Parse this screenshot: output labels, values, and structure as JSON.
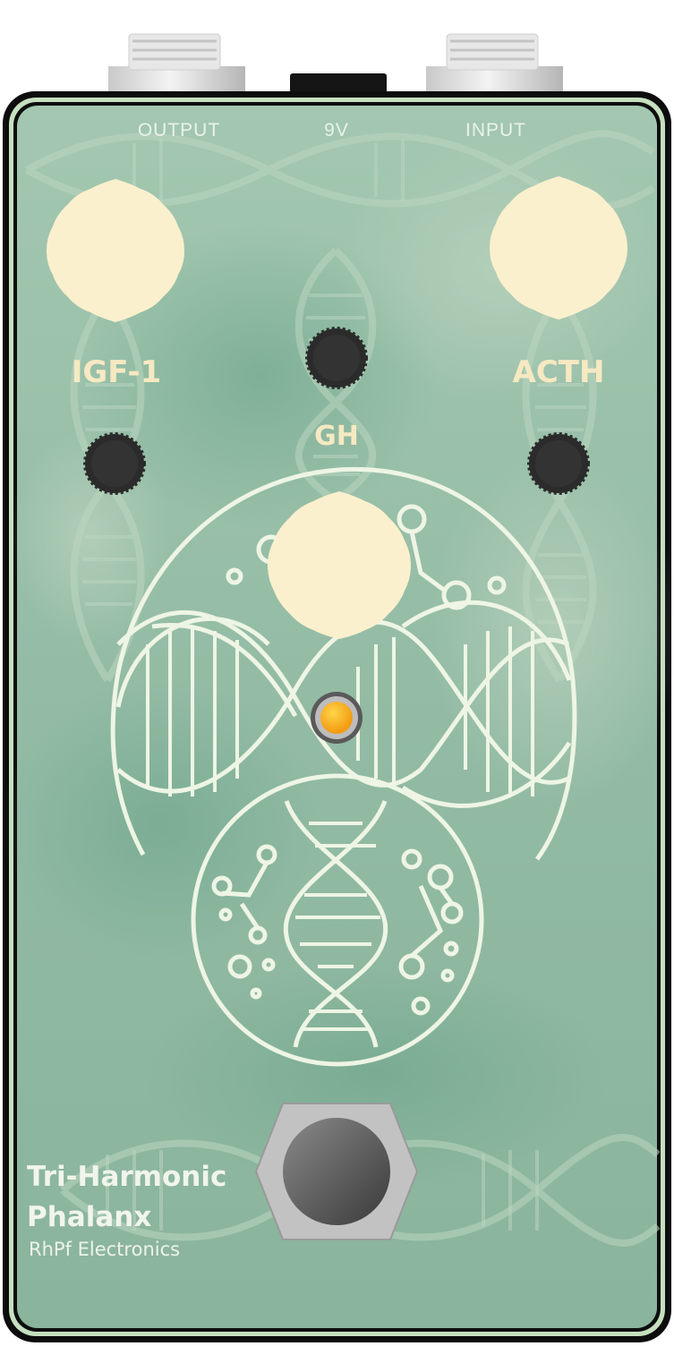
{
  "jacks": {
    "output_label": "OUTPUT",
    "power_label": "9V",
    "input_label": "INPUT"
  },
  "controls": {
    "knob_left_label": "IGF-1",
    "knob_center_label": "GH",
    "knob_right_label": "ACTH"
  },
  "branding": {
    "name_line1": "Tri-Harmonic",
    "name_line2": "Phalanx",
    "manufacturer": "RhPf Electronics"
  },
  "colors": {
    "enclosure_green": "#8fb8a0",
    "knob_cream": "#fbf0cd",
    "trim_pot": "#2b2b2b",
    "led": "#f7b21a",
    "outline": "#0d0d0d",
    "artwork_line": "#eaf3e0"
  },
  "icons": {
    "artwork": "dna-helix-cell-artwork",
    "led": "status-led-icon",
    "footswitch": "footswitch-icon"
  }
}
